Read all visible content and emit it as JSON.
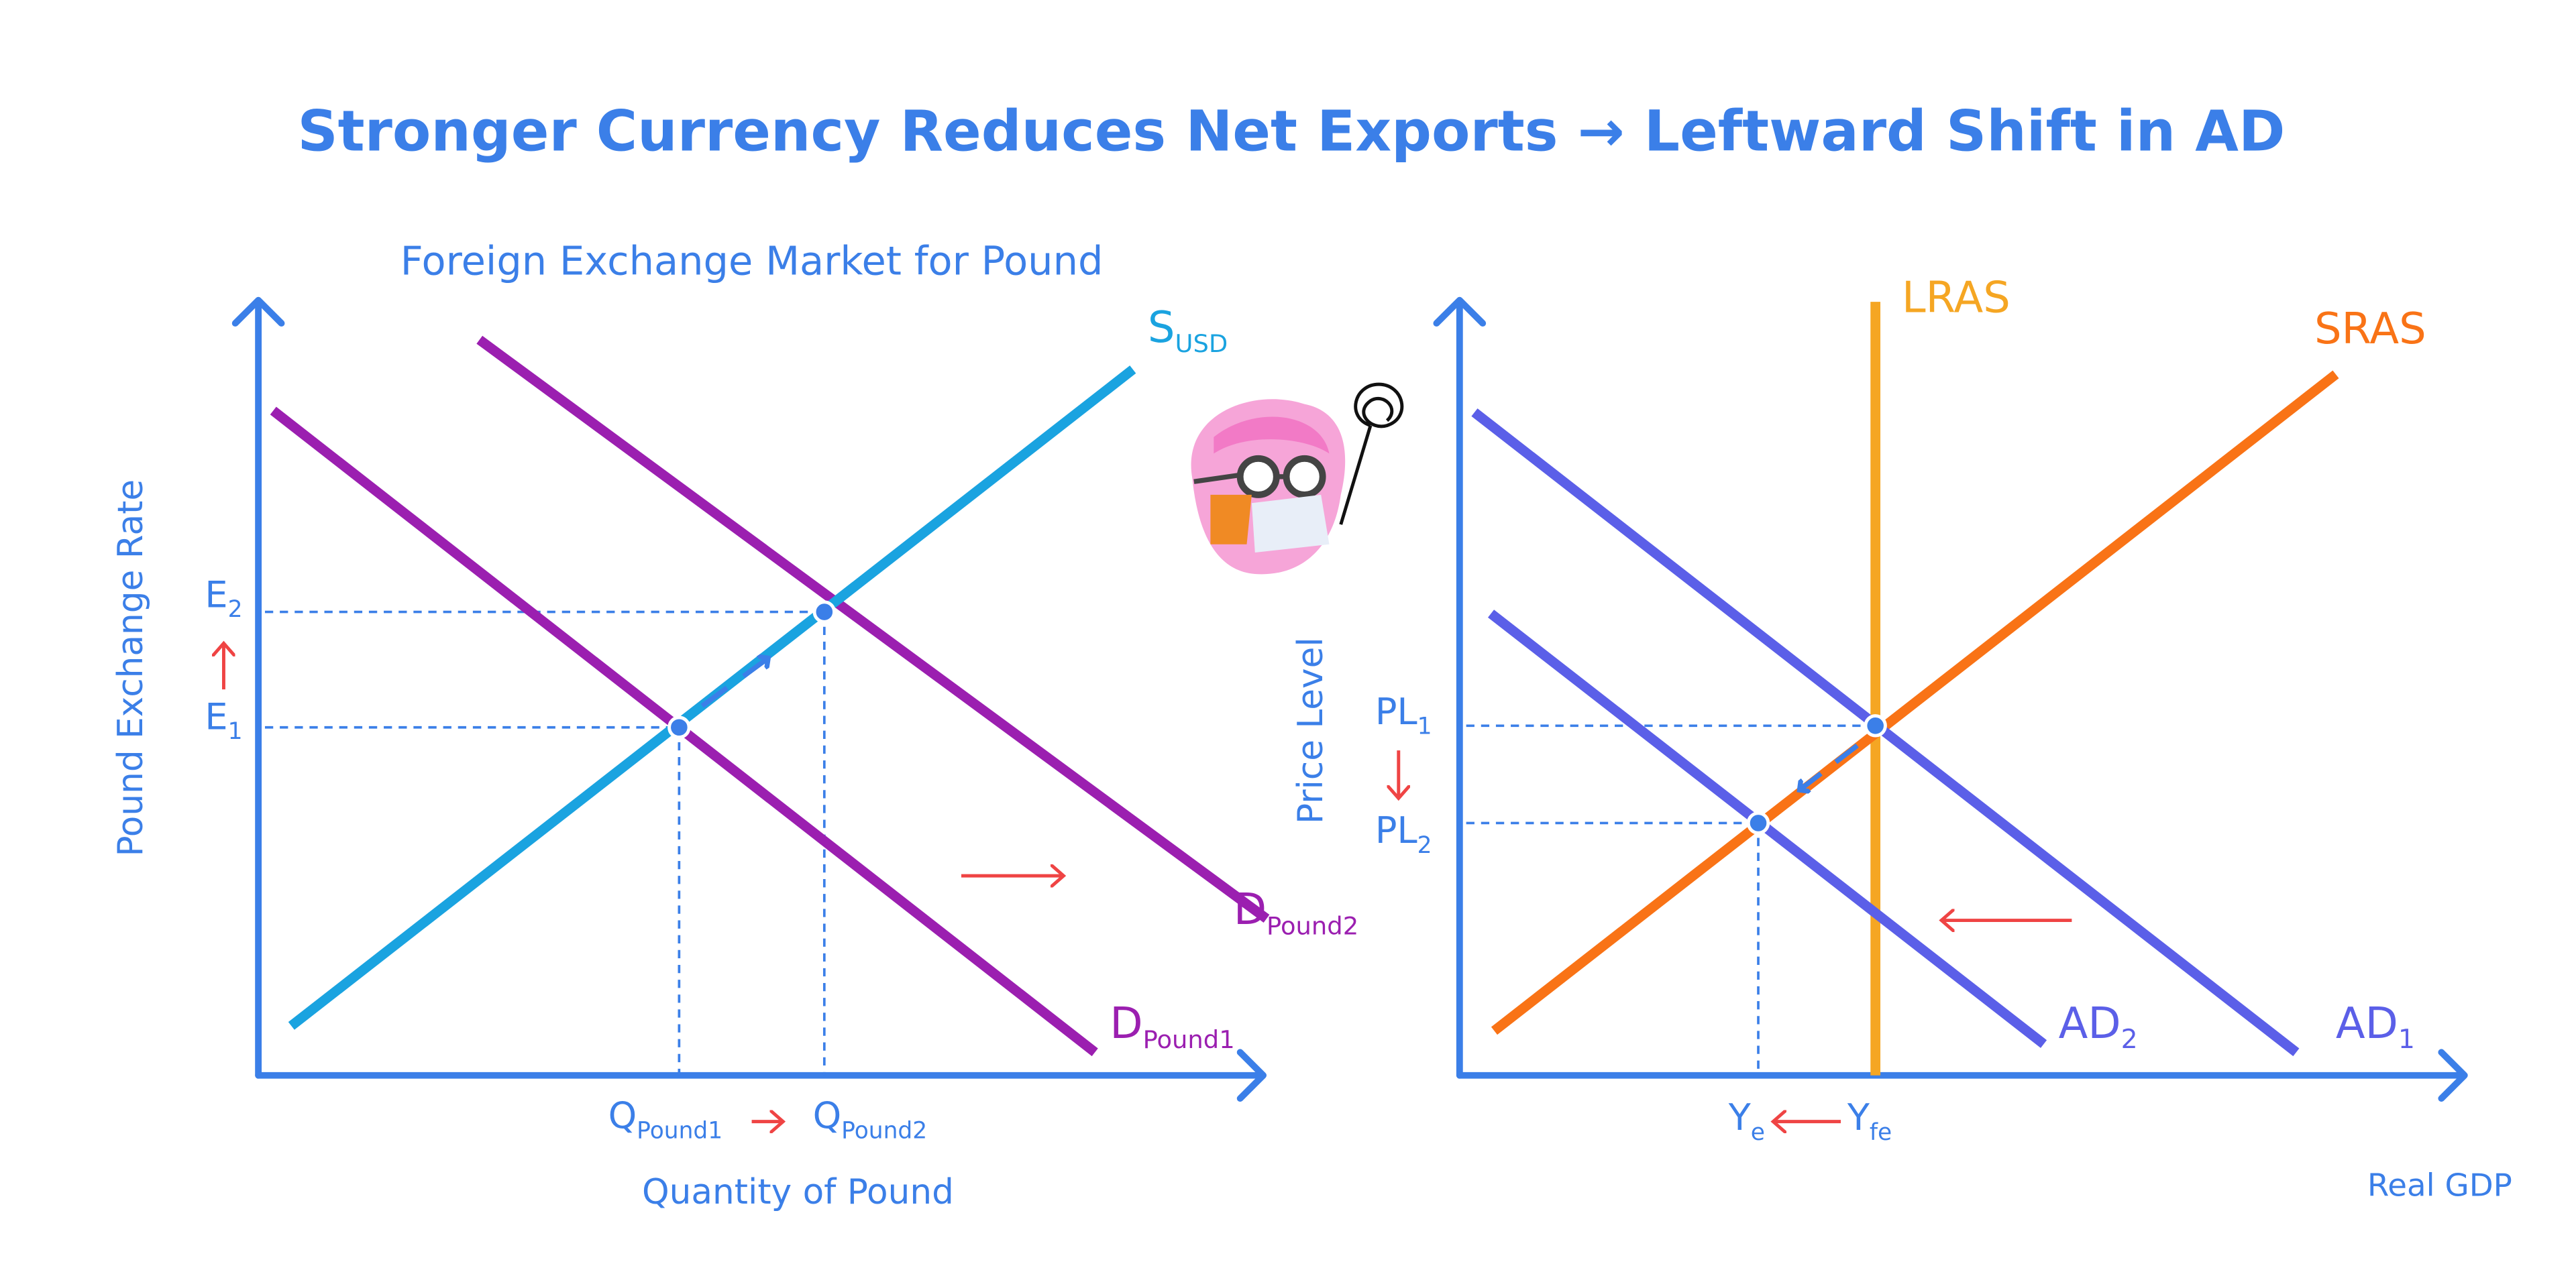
{
  "title": "Stronger Currency Reduces Net Exports → Leftward Shift in AD",
  "left_panel": {
    "title": "Foreign Exchange Market for Pound",
    "y_axis_label": "Pound Exchange Rate",
    "x_axis_label": "Quantity of Pound",
    "e2": {
      "main": "E",
      "sub": "2"
    },
    "e1": {
      "main": "E",
      "sub": "1"
    },
    "supply": {
      "main": "S",
      "sub": "USD"
    },
    "demand2": {
      "main": "D",
      "sub": "Pound2"
    },
    "demand1": {
      "main": "D",
      "sub": "Pound1"
    },
    "q1": {
      "main": "Q",
      "sub": "Pound1"
    },
    "q2": {
      "main": "Q",
      "sub": "Pound2"
    }
  },
  "right_panel": {
    "y_axis_label": "Price Level",
    "x_axis_label": "Real GDP",
    "lras": "LRAS",
    "sras": "SRAS",
    "ad1": {
      "main": "AD",
      "sub": "1"
    },
    "ad2": {
      "main": "AD",
      "sub": "2"
    },
    "pl1": {
      "main": "PL",
      "sub": "1"
    },
    "pl2": {
      "main": "PL",
      "sub": "2"
    },
    "ye": {
      "main": "Y",
      "sub": "e"
    },
    "yfe": {
      "main": "Y",
      "sub": "fe"
    }
  }
}
